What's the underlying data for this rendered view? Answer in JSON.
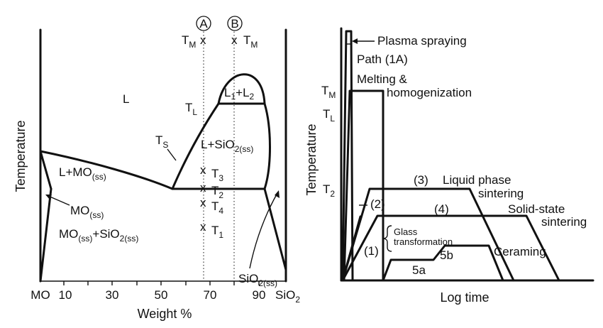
{
  "left_panel": {
    "axis_x": {
      "label": "Weight %",
      "ticks": [
        "MO",
        "10",
        "30",
        "50",
        "70",
        "90",
        "SiO2"
      ]
    },
    "axis_y": {
      "label": "Temperature"
    },
    "compositions": [
      "A",
      "B"
    ],
    "regions": {
      "liquid": "L",
      "two_liquids": "L1+L2",
      "liquid_silica": "L+SiO2(ss)",
      "liquid_mo": "L+MO(ss)",
      "mo_ss": "MO(ss)",
      "two_solids": "MO(ss)+SiO2(ss)",
      "silica_ss": "SiO2(ss)"
    },
    "temps": {
      "TM": "TM",
      "TL": "TL",
      "TS": "TS",
      "T1": "T1",
      "T2": "T2",
      "T3": "T3",
      "T4": "T4"
    },
    "markers": {
      "x": "x"
    }
  },
  "right_panel": {
    "axis_x": {
      "label": "Log time"
    },
    "axis_y": {
      "label": "Temperature"
    },
    "y_levels": [
      "TM",
      "TL",
      "T2"
    ],
    "annotations": {
      "plasma": "Plasma spraying",
      "path": "Path (1A)",
      "melt1": "Melting &",
      "melt2": "homogenization",
      "p3": "(3)",
      "lps1": "Liquid phase",
      "lps2": "sintering",
      "p2": "(2)",
      "p4": "(4)",
      "sss1": "Solid-state",
      "sss2": "sintering",
      "glass1": "Glass",
      "glass2": "transformation",
      "p1": "(1)",
      "ceram": "Ceraming",
      "s5a": "5a",
      "s5b": "5b"
    }
  }
}
